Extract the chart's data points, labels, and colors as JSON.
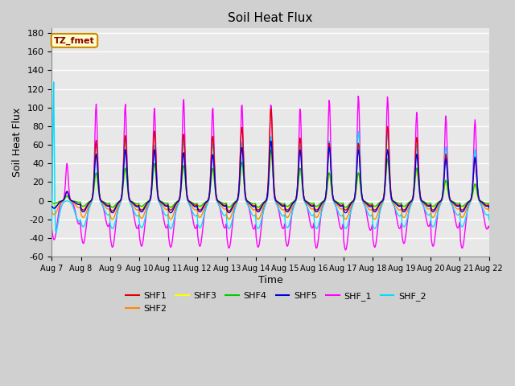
{
  "title": "Soil Heat Flux",
  "xlabel": "Time",
  "ylabel": "Soil Heat Flux",
  "ylim": [
    -60,
    185
  ],
  "yticks": [
    -60,
    -40,
    -20,
    0,
    20,
    40,
    60,
    80,
    100,
    120,
    140,
    160,
    180
  ],
  "xtick_labels": [
    "Aug 7",
    "Aug 8",
    "Aug 9",
    "Aug 10",
    "Aug 11",
    "Aug 12",
    "Aug 13",
    "Aug 14",
    "Aug 15",
    "Aug 16",
    "Aug 17",
    "Aug 18",
    "Aug 19",
    "Aug 20",
    "Aug 21",
    "Aug 22"
  ],
  "series_colors": {
    "SHF1": "#dd0000",
    "SHF2": "#ff8800",
    "SHF3": "#ffff00",
    "SHF4": "#00cc00",
    "SHF5": "#0000dd",
    "SHF_1": "#ff00ff",
    "SHF_2": "#00ddff"
  },
  "annotation_text": "TZ_fmet",
  "annotation_bg": "#ffffcc",
  "annotation_border": "#cc8800",
  "plot_bg": "#e8e8e8",
  "grid_color": "#ffffff",
  "fig_bg": "#d0d0d0"
}
